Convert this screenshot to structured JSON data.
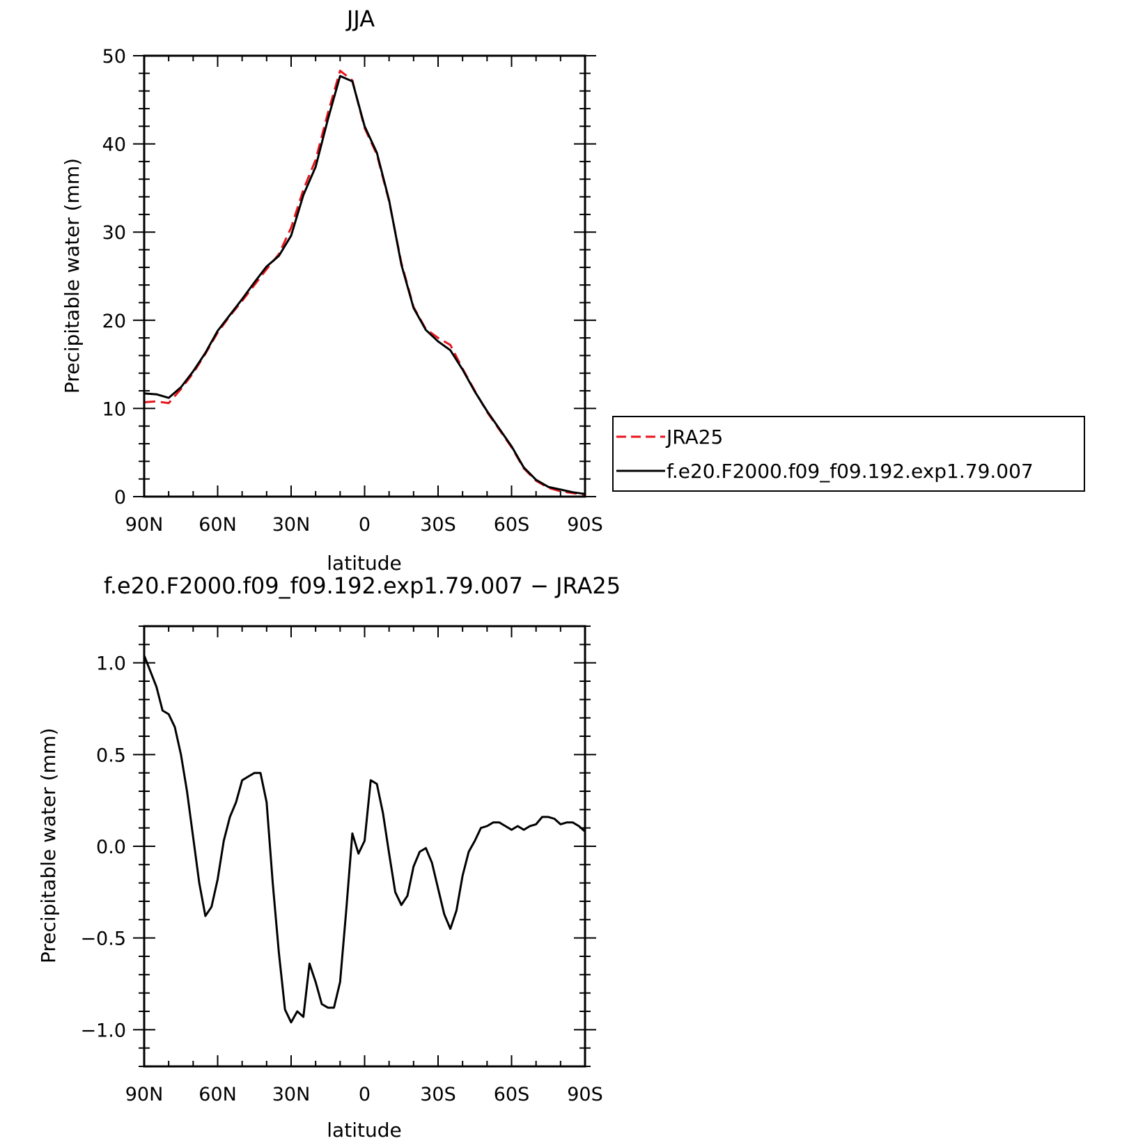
{
  "chart_data": [
    {
      "type": "line",
      "title": "JJA",
      "xlabel": "latitude",
      "ylabel": "Precipitable water (mm)",
      "x_ticks": [
        {
          "value": 90,
          "label": "90N"
        },
        {
          "value": 60,
          "label": "60N"
        },
        {
          "value": 30,
          "label": "30N"
        },
        {
          "value": 0,
          "label": "0"
        },
        {
          "value": -30,
          "label": "30S"
        },
        {
          "value": -60,
          "label": "60S"
        },
        {
          "value": -90,
          "label": "90S"
        }
      ],
      "xlim": [
        90,
        -90
      ],
      "y_ticks": [
        {
          "value": 0,
          "label": "0"
        },
        {
          "value": 10,
          "label": "10"
        },
        {
          "value": 20,
          "label": "20"
        },
        {
          "value": 30,
          "label": "30"
        },
        {
          "value": 40,
          "label": "40"
        },
        {
          "value": 50,
          "label": "50"
        }
      ],
      "ylim": [
        0,
        50
      ],
      "legend_position": "right",
      "x": [
        90,
        85,
        80,
        75,
        70,
        65,
        60,
        55,
        50,
        45,
        40,
        35,
        30,
        25,
        20,
        15,
        10,
        5,
        0,
        -5,
        -10,
        -15,
        -20,
        -25,
        -30,
        -35,
        -40,
        -45,
        -50,
        -55,
        -60,
        -65,
        -70,
        -75,
        -80,
        -85,
        -90
      ],
      "series": [
        {
          "name": "JRA25",
          "color": "#e8141c",
          "dash": true,
          "values": [
            10.7,
            10.8,
            10.6,
            12.2,
            14.0,
            16.2,
            18.6,
            20.5,
            22.2,
            24.0,
            25.8,
            27.5,
            30.5,
            34.8,
            38.2,
            43.5,
            48.3,
            47.2,
            41.8,
            38.8,
            33.5,
            26.5,
            21.5,
            19.0,
            18.0,
            17.2,
            14.5,
            12.0,
            9.6,
            7.6,
            5.6,
            3.2,
            1.8,
            1.0,
            0.6,
            0.4,
            0.2
          ]
        },
        {
          "name": "f.e20.F2000.f09_f09.192.exp1.79.007",
          "color": "#000000",
          "dash": false,
          "values": [
            11.7,
            11.6,
            11.2,
            12.4,
            14.2,
            16.3,
            18.8,
            20.6,
            22.4,
            24.3,
            26.1,
            27.3,
            29.6,
            34.2,
            37.4,
            42.8,
            47.7,
            47.1,
            42.0,
            39.0,
            33.6,
            26.3,
            21.4,
            18.9,
            17.6,
            16.6,
            14.4,
            11.9,
            9.7,
            7.7,
            5.7,
            3.3,
            1.9,
            1.1,
            0.8,
            0.5,
            0.3
          ]
        }
      ]
    },
    {
      "type": "line",
      "title": "f.e20.F2000.f09_f09.192.exp1.79.007 − JRA25",
      "xlabel": "latitude",
      "ylabel": "Precipitable water (mm)",
      "x_ticks": [
        {
          "value": 90,
          "label": "90N"
        },
        {
          "value": 60,
          "label": "60N"
        },
        {
          "value": 30,
          "label": "30N"
        },
        {
          "value": 0,
          "label": "0"
        },
        {
          "value": -30,
          "label": "30S"
        },
        {
          "value": -60,
          "label": "60S"
        },
        {
          "value": -90,
          "label": "90S"
        }
      ],
      "xlim": [
        90,
        -90
      ],
      "y_ticks": [
        {
          "value": -1.0,
          "label": "−1.0"
        },
        {
          "value": -0.5,
          "label": "−0.5"
        },
        {
          "value": 0.0,
          "label": "0.0"
        },
        {
          "value": 0.5,
          "label": "0.5"
        },
        {
          "value": 1.0,
          "label": "1.0"
        }
      ],
      "ylim": [
        -1.2,
        1.2
      ],
      "x": [
        90,
        85,
        82.5,
        80,
        77.5,
        75,
        72.5,
        70,
        67.5,
        65,
        62.5,
        60,
        57.5,
        55,
        52.5,
        50,
        47.5,
        45,
        42.5,
        40,
        37.5,
        35,
        32.5,
        30,
        27.5,
        25,
        22.5,
        20,
        17.5,
        15,
        12.5,
        10,
        7.5,
        5,
        2.5,
        0,
        -2.5,
        -5,
        -7.5,
        -10,
        -12.5,
        -15,
        -17.5,
        -20,
        -22.5,
        -25,
        -27.5,
        -30,
        -32.5,
        -35,
        -37.5,
        -40,
        -42.5,
        -45,
        -47.5,
        -50,
        -52.5,
        -55,
        -57.5,
        -60,
        -62.5,
        -65,
        -67.5,
        -70,
        -72.5,
        -75,
        -77.5,
        -80,
        -82.5,
        -85,
        -87.5,
        -90
      ],
      "series": [
        {
          "name": "",
          "color": "#000000",
          "dash": false,
          "values": [
            1.04,
            0.87,
            0.74,
            0.72,
            0.65,
            0.5,
            0.3,
            0.05,
            -0.2,
            -0.38,
            -0.33,
            -0.18,
            0.03,
            0.16,
            0.24,
            0.36,
            0.38,
            0.4,
            0.4,
            0.24,
            -0.2,
            -0.58,
            -0.89,
            -0.96,
            -0.9,
            -0.93,
            -0.64,
            -0.74,
            -0.86,
            -0.88,
            -0.88,
            -0.74,
            -0.35,
            0.07,
            -0.04,
            0.03,
            0.36,
            0.34,
            0.18,
            -0.04,
            -0.25,
            -0.32,
            -0.27,
            -0.11,
            -0.03,
            -0.01,
            -0.09,
            -0.23,
            -0.37,
            -0.45,
            -0.35,
            -0.16,
            -0.03,
            0.03,
            0.1,
            0.11,
            0.13,
            0.13,
            0.11,
            0.09,
            0.11,
            0.09,
            0.11,
            0.12,
            0.16,
            0.16,
            0.15,
            0.12,
            0.13,
            0.13,
            0.11,
            0.08
          ]
        }
      ]
    }
  ]
}
